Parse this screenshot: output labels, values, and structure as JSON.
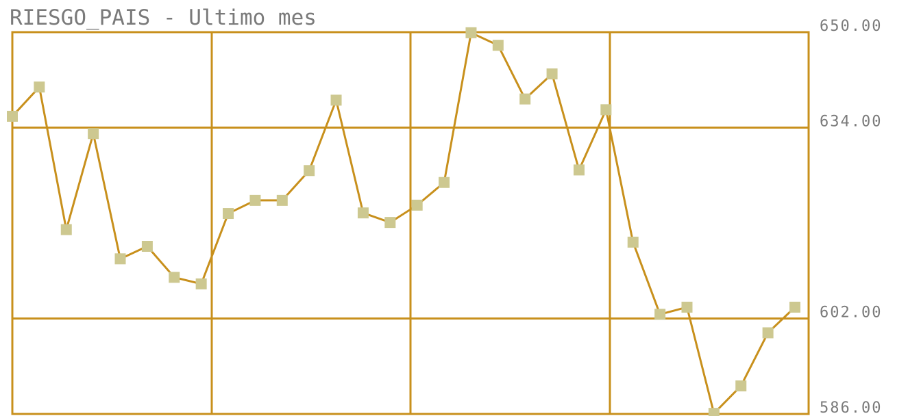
{
  "chart_data": {
    "type": "line",
    "title": "RIESGO_PAIS - Ultimo mes",
    "values": [
      635.9,
      640.8,
      616.9,
      633.0,
      612.0,
      614.1,
      608.9,
      607.8,
      619.6,
      621.8,
      621.8,
      626.8,
      638.6,
      619.7,
      618.1,
      621.0,
      624.8,
      649.9,
      647.8,
      638.8,
      643.0,
      626.9,
      637.0,
      614.8,
      602.7,
      603.9,
      586.1,
      590.7,
      599.6,
      603.9
    ],
    "color": "#c8901c",
    "marker_color": "#cdc890",
    "ylim": [
      586,
      650
    ],
    "yticks": [
      {
        "value": 650,
        "label": "650.00"
      },
      {
        "value": 634,
        "label": "634.00"
      },
      {
        "value": 602,
        "label": "602.00"
      },
      {
        "value": 586,
        "label": "586.00"
      }
    ],
    "grid": true
  }
}
